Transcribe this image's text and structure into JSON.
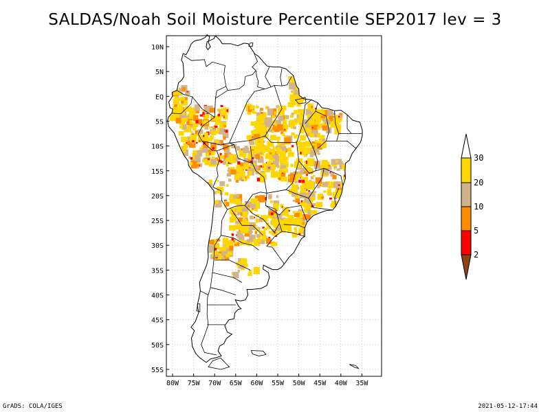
{
  "title": "SALDAS/Noah Soil Moisture Percentile SEP2017 lev = 3",
  "footer": {
    "left": "GrADS: COLA/IGES",
    "right": "2021-05-12-17:44"
  },
  "axes": {
    "lat_labels": [
      "10N",
      "5N",
      "EQ",
      "5S",
      "10S",
      "15S",
      "20S",
      "25S",
      "30S",
      "35S",
      "40S",
      "45S",
      "50S",
      "55S"
    ],
    "lat_values": [
      10,
      5,
      0,
      -5,
      -10,
      -15,
      -20,
      -25,
      -30,
      -35,
      -40,
      -45,
      -50,
      -55
    ],
    "lon_labels": [
      "80W",
      "75W",
      "70W",
      "65W",
      "60W",
      "55W",
      "50W",
      "45W",
      "40W",
      "35W"
    ],
    "lon_values": [
      -80,
      -75,
      -70,
      -65,
      -60,
      -55,
      -50,
      -45,
      -40,
      -35
    ],
    "lon_range": [
      -81,
      -33
    ],
    "lat_range": [
      -56,
      12
    ]
  },
  "legend": {
    "levels": [
      "2",
      "5",
      "10",
      "20",
      "30"
    ],
    "colors": {
      "below_2": "#8b4513",
      "2_5": "#ff0000",
      "5_10": "#ff8c00",
      "10_20": "#d2b48c",
      "20_30": "#ffd700",
      "above_30": "#ffffff"
    }
  },
  "colors": {
    "yellow": "#ffd700",
    "tan": "#d2b48c",
    "orange": "#ff8c00",
    "red": "#ff0000",
    "brown": "#8b4513",
    "border": "#000000",
    "grid": "#aaaaaa"
  }
}
